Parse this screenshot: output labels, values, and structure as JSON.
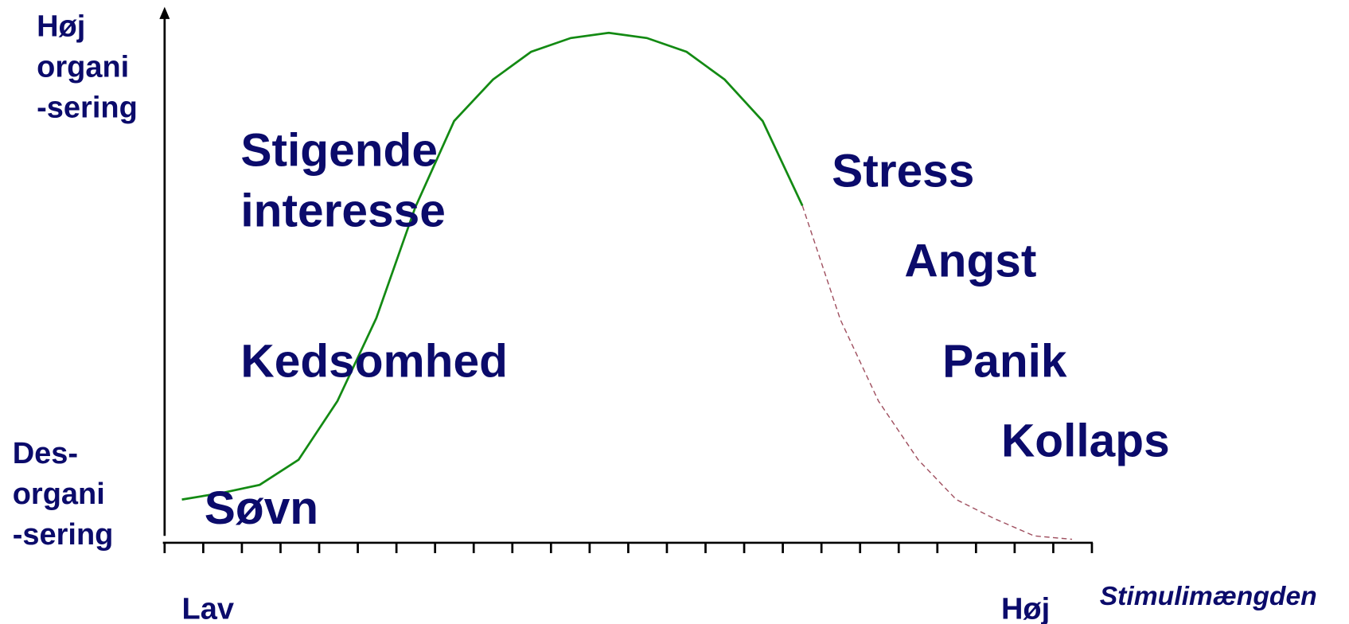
{
  "y_axis": {
    "top": [
      "Høj",
      "organi",
      "-sering"
    ],
    "bottom": [
      "Des-",
      "organi",
      "-sering"
    ]
  },
  "regions": {
    "rising_interest": [
      "Stigende",
      "interesse"
    ],
    "boredom": "Kedsomhed",
    "sleep": "Søvn",
    "stress": "Stress",
    "anxiety": "Angst",
    "panic": "Panik",
    "collapse": "Kollaps"
  },
  "x_axis": {
    "low": "Lav",
    "high": "Høj",
    "label": "Stimulimængden"
  }
}
